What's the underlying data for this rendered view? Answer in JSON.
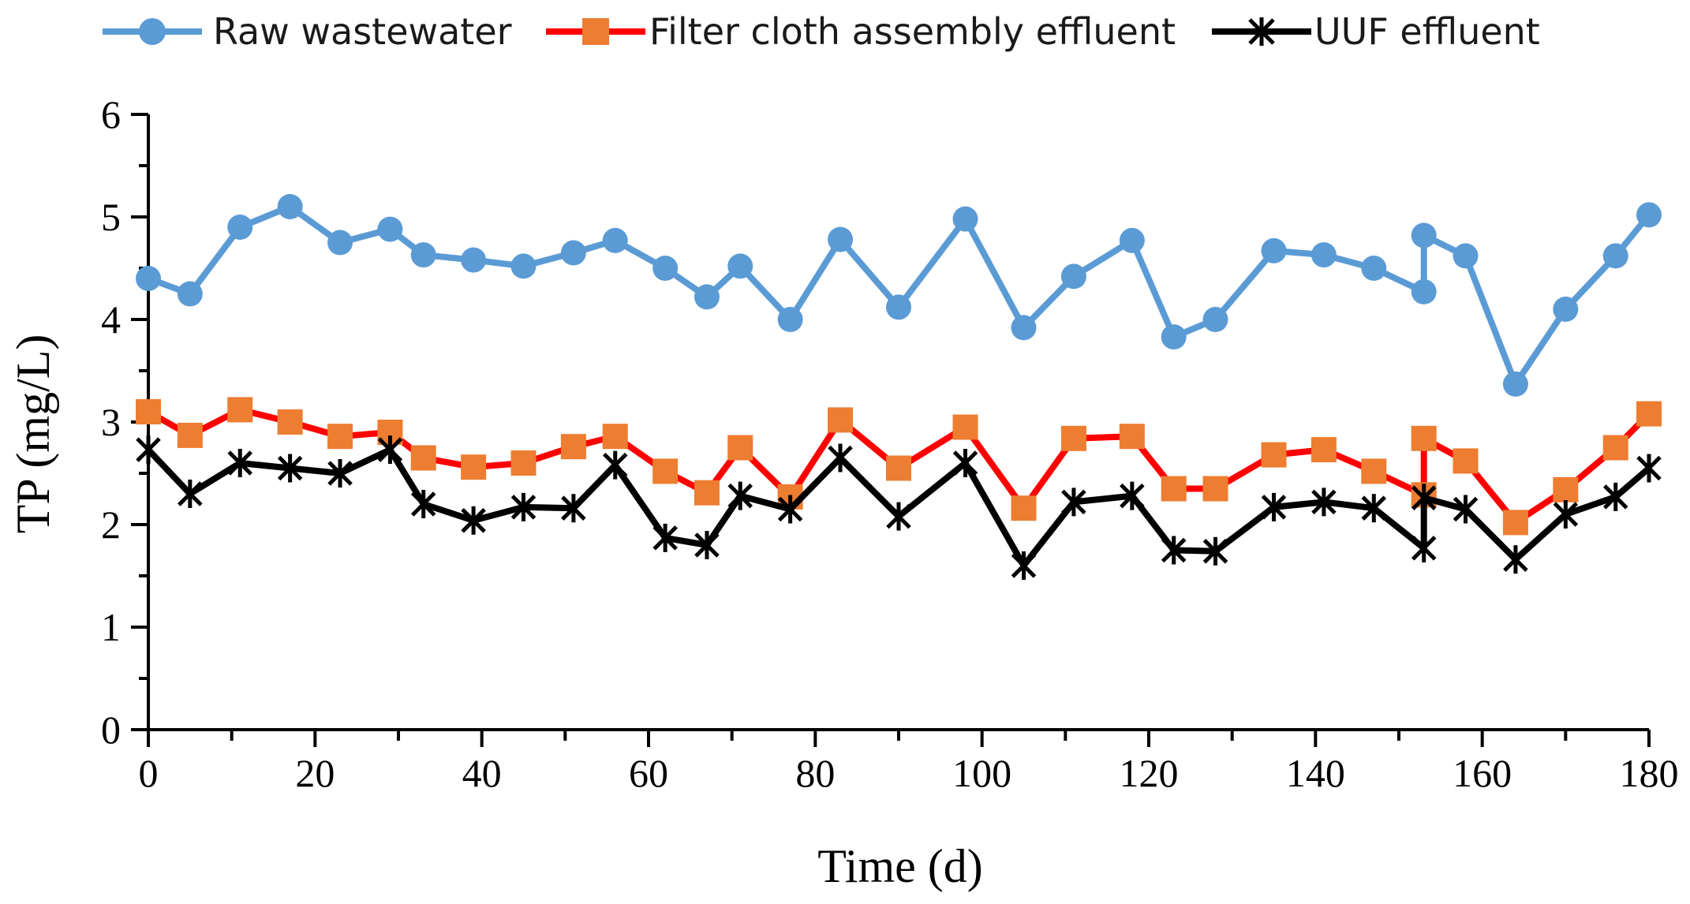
{
  "chart_data": {
    "type": "line",
    "title": "",
    "xlabel": "Time (d)",
    "ylabel": "TP (mg/L)",
    "xlim": [
      0,
      180
    ],
    "ylim": [
      0,
      6
    ],
    "xticks": [
      "0",
      "20",
      "40",
      "60",
      "80",
      "100",
      "120",
      "140",
      "160",
      "180"
    ],
    "yticks": [
      "0",
      "1",
      "2",
      "3",
      "4",
      "5",
      "6"
    ],
    "legend_position": "top",
    "grid": false,
    "colors": {
      "raw": "#5B9BD5",
      "filter_line": "#FF0000",
      "filter_marker": "#ED7D31",
      "uuf": "#000000"
    },
    "series": [
      {
        "name": "Raw wastewater",
        "x": [
          0,
          5,
          11,
          17,
          23,
          29,
          33,
          39,
          45,
          51,
          56,
          62,
          67,
          71,
          77,
          83,
          90,
          98,
          105,
          111,
          118,
          123,
          128,
          135,
          141,
          147,
          153,
          153,
          158,
          164,
          170,
          176,
          180
        ],
        "y": [
          4.4,
          4.25,
          4.9,
          5.1,
          4.75,
          4.88,
          4.63,
          4.58,
          4.52,
          4.65,
          4.77,
          4.5,
          4.22,
          4.52,
          4.0,
          4.78,
          4.12,
          4.98,
          3.92,
          4.42,
          4.77,
          3.83,
          4.0,
          4.67,
          4.63,
          4.5,
          4.27,
          4.82,
          4.62,
          3.37,
          4.1,
          4.62,
          5.02
        ]
      },
      {
        "name": "Filter cloth assembly effluent",
        "x": [
          0,
          5,
          11,
          17,
          23,
          29,
          33,
          39,
          45,
          51,
          56,
          62,
          67,
          71,
          77,
          83,
          90,
          98,
          105,
          111,
          118,
          123,
          128,
          135,
          141,
          147,
          153,
          153,
          158,
          164,
          170,
          176,
          180
        ],
        "y": [
          3.1,
          2.87,
          3.12,
          3.0,
          2.86,
          2.9,
          2.65,
          2.56,
          2.6,
          2.76,
          2.86,
          2.52,
          2.31,
          2.75,
          2.27,
          3.02,
          2.55,
          2.95,
          2.16,
          2.84,
          2.86,
          2.35,
          2.35,
          2.68,
          2.73,
          2.52,
          2.29,
          2.84,
          2.62,
          2.02,
          2.34,
          2.75,
          3.08
        ]
      },
      {
        "name": "UUF effluent",
        "x": [
          0,
          5,
          11,
          17,
          23,
          29,
          33,
          39,
          45,
          51,
          56,
          62,
          67,
          71,
          77,
          83,
          90,
          98,
          105,
          111,
          118,
          123,
          128,
          135,
          141,
          147,
          153,
          153,
          158,
          164,
          170,
          176,
          180
        ],
        "y": [
          2.73,
          2.3,
          2.6,
          2.55,
          2.5,
          2.73,
          2.2,
          2.04,
          2.17,
          2.16,
          2.58,
          1.87,
          1.8,
          2.28,
          2.15,
          2.65,
          2.08,
          2.6,
          1.6,
          2.22,
          2.28,
          1.75,
          1.74,
          2.17,
          2.22,
          2.16,
          1.77,
          2.26,
          2.15,
          1.66,
          2.1,
          2.27,
          2.55
        ]
      }
    ]
  }
}
